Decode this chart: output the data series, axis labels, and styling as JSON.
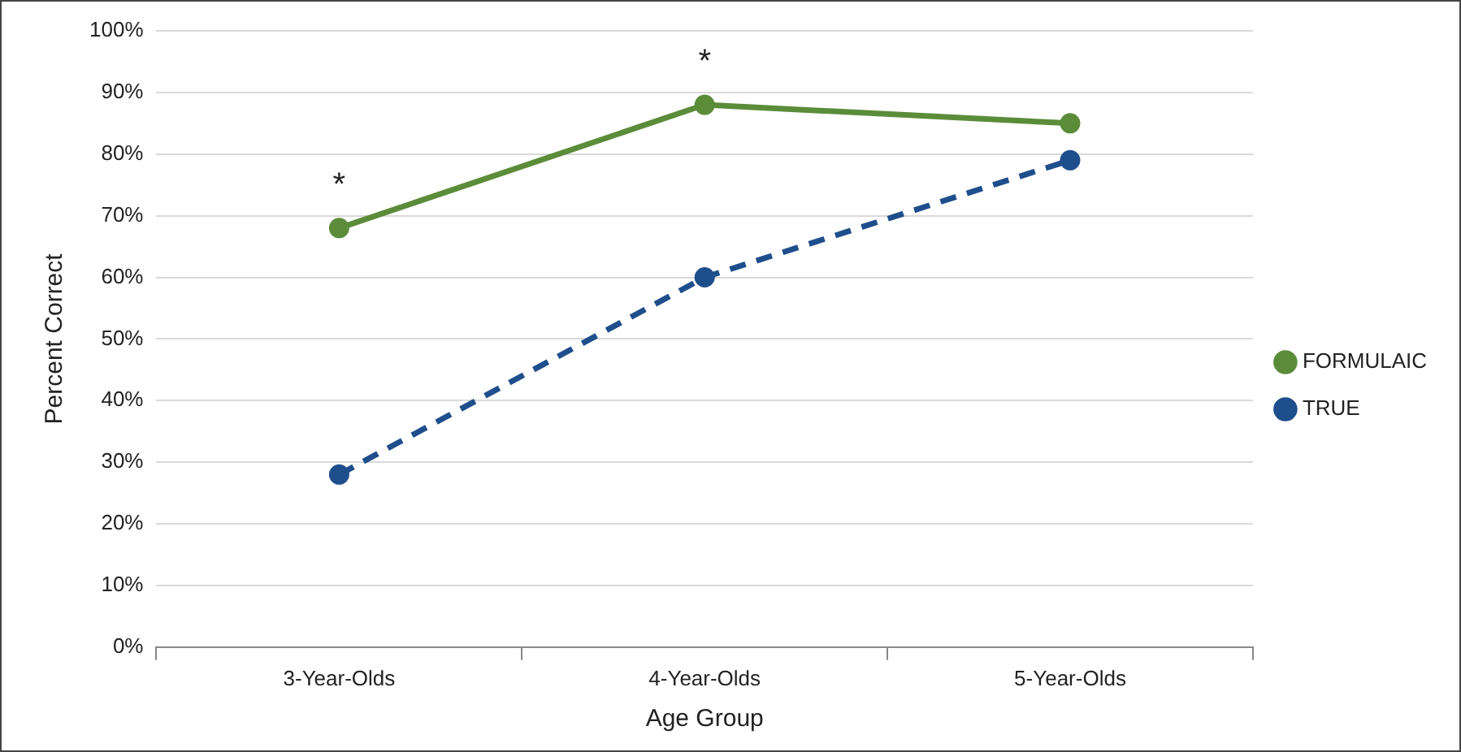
{
  "chart_data": {
    "type": "line",
    "xlabel": "Age Group",
    "ylabel": "Percent Correct",
    "categories": [
      "3-Year-Olds",
      "4-Year-Olds",
      "5-Year-Olds"
    ],
    "series": [
      {
        "name": "FORMULAIC",
        "color": "#5b8c3a",
        "values": [
          68,
          88,
          85
        ],
        "line_style": "solid"
      },
      {
        "name": "TRUE",
        "color": "#1f4e8c",
        "values": [
          28,
          60,
          79
        ],
        "line_style": "dashed"
      }
    ],
    "ylim": [
      0,
      100
    ],
    "yticks": [
      {
        "value": 0,
        "label": "0%"
      },
      {
        "value": 10,
        "label": "10%"
      },
      {
        "value": 20,
        "label": "20%"
      },
      {
        "value": 30,
        "label": "30%"
      },
      {
        "value": 40,
        "label": "40%"
      },
      {
        "value": 50,
        "label": "50%"
      },
      {
        "value": 60,
        "label": "60%"
      },
      {
        "value": 70,
        "label": "70%"
      },
      {
        "value": 80,
        "label": "80%"
      },
      {
        "value": 90,
        "label": "90%"
      },
      {
        "value": 100,
        "label": "100%"
      }
    ],
    "annotations": [
      "*",
      "*"
    ],
    "grid": "y",
    "legend": "right",
    "marker": "circle"
  }
}
